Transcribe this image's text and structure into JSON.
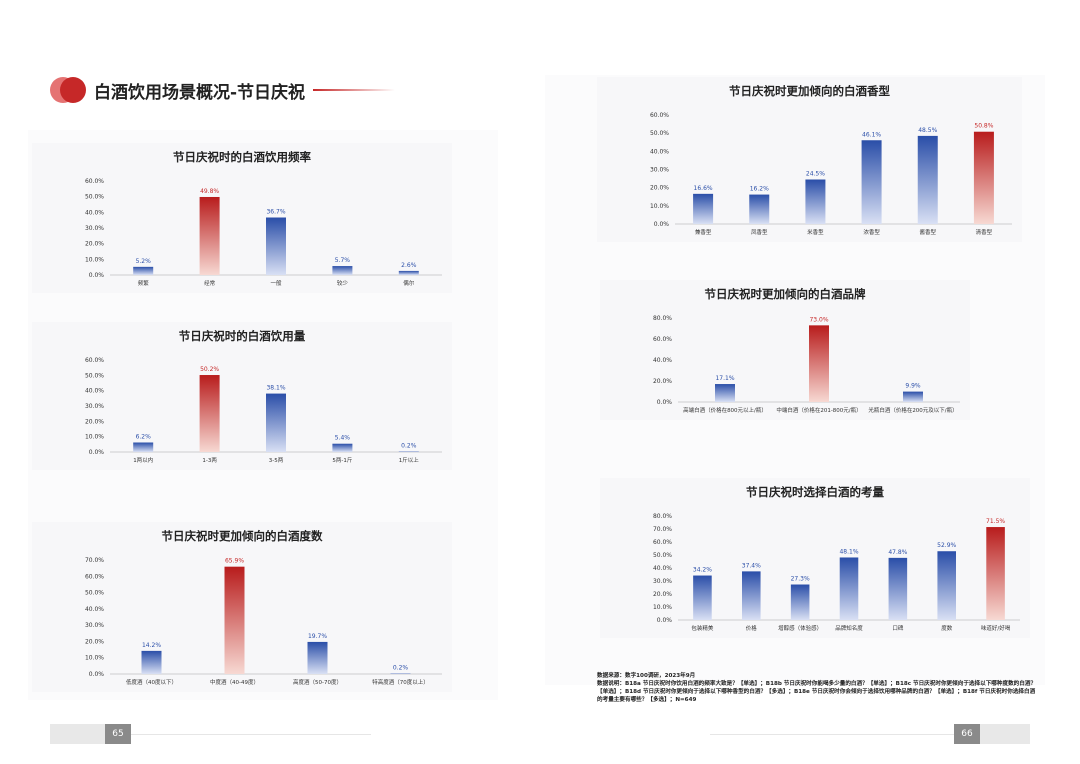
{
  "header": {
    "title": "白酒饮用场景概况-节日庆祝"
  },
  "colors": {
    "accent": "#c62828",
    "red_bar_top": "#b81c1c",
    "red_bar_bottom": "#f7d9d3",
    "blue_bar_top": "#2a4ea8",
    "blue_bar_bottom": "#d9e0f4",
    "red_label": "#c62828",
    "blue_label": "#2a4ea8"
  },
  "chart_data": [
    {
      "type": "bar",
      "title": "节日庆祝时的白酒饮用频率",
      "categories": [
        "频繁",
        "经常",
        "一般",
        "较少",
        "偶尔"
      ],
      "values": [
        5.2,
        49.8,
        36.7,
        5.7,
        2.6
      ],
      "labels": [
        "5.2%",
        "49.8%",
        "36.7%",
        "5.7%",
        "2.6%"
      ],
      "yticks": [
        "0.0%",
        "10.0%",
        "20.0%",
        "30.0%",
        "40.0%",
        "50.0%",
        "60.0%"
      ],
      "ylim": [
        0,
        60
      ],
      "highlight": 1
    },
    {
      "type": "bar",
      "title": "节日庆祝时的白酒饮用量",
      "categories": [
        "1两以内",
        "1-3两",
        "3-5两",
        "5两-1斤",
        "1斤以上"
      ],
      "values": [
        6.2,
        50.2,
        38.1,
        5.4,
        0.2
      ],
      "labels": [
        "6.2%",
        "50.2%",
        "38.1%",
        "5.4%",
        "0.2%"
      ],
      "yticks": [
        "0.0%",
        "10.0%",
        "20.0%",
        "30.0%",
        "40.0%",
        "50.0%",
        "60.0%"
      ],
      "ylim": [
        0,
        60
      ],
      "highlight": 1
    },
    {
      "type": "bar",
      "title": "节日庆祝时更加倾向的白酒度数",
      "categories": [
        "低度酒（40度以下）",
        "中度酒（40-49度）",
        "高度酒（50-70度）",
        "特高度酒（70度以上）"
      ],
      "values": [
        14.2,
        65.9,
        19.7,
        0.2
      ],
      "labels": [
        "14.2%",
        "65.9%",
        "19.7%",
        "0.2%"
      ],
      "yticks": [
        "0.0%",
        "10.0%",
        "20.0%",
        "30.0%",
        "40.0%",
        "50.0%",
        "60.0%",
        "70.0%"
      ],
      "ylim": [
        0,
        70
      ],
      "highlight": 1
    },
    {
      "type": "bar",
      "title": "节日庆祝时更加倾向的白酒香型",
      "categories": [
        "兼香型",
        "凤香型",
        "米香型",
        "浓香型",
        "酱香型",
        "清香型"
      ],
      "values": [
        16.6,
        16.2,
        24.5,
        46.1,
        48.5,
        50.8
      ],
      "labels": [
        "16.6%",
        "16.2%",
        "24.5%",
        "46.1%",
        "48.5%",
        "50.8%"
      ],
      "yticks": [
        "0.0%",
        "10.0%",
        "20.0%",
        "30.0%",
        "40.0%",
        "50.0%",
        "60.0%"
      ],
      "ylim": [
        0,
        60
      ],
      "highlight": 5
    },
    {
      "type": "bar",
      "title": "节日庆祝时更加倾向的白酒品牌",
      "categories": [
        "高端白酒（价格在800元以上/瓶）",
        "中端白酒（价格在201-800元/瓶）",
        "光瓶白酒（价格在200元及以下/瓶）"
      ],
      "values": [
        17.1,
        73.0,
        9.9
      ],
      "labels": [
        "17.1%",
        "73.0%",
        "9.9%"
      ],
      "yticks": [
        "0.0%",
        "20.0%",
        "40.0%",
        "60.0%",
        "80.0%"
      ],
      "ylim": [
        0,
        80
      ],
      "highlight": 1
    },
    {
      "type": "bar",
      "title": "节日庆祝时选择白酒的考量",
      "categories": [
        "包装精美",
        "价格",
        "增醇感（体验感）",
        "品牌知名度",
        "口碑",
        "度数",
        "味道好/好喝"
      ],
      "values": [
        34.2,
        37.4,
        27.3,
        48.1,
        47.8,
        52.9,
        71.5
      ],
      "labels": [
        "34.2%",
        "37.4%",
        "27.3%",
        "48.1%",
        "47.8%",
        "52.9%",
        "71.5%"
      ],
      "yticks": [
        "0.0%",
        "10.0%",
        "20.0%",
        "30.0%",
        "40.0%",
        "50.0%",
        "60.0%",
        "70.0%",
        "80.0%"
      ],
      "ylim": [
        0,
        80
      ],
      "highlight": 6
    }
  ],
  "source": {
    "line1": "数据来源：数字100调研，2023年9月",
    "line2": "数据说明：B18a 节日庆祝时你饮用白酒的频率大致是？【单选】；B18b 节日庆祝时你能喝多少量的白酒？【单选】；B18c 节日庆祝时你更倾向于选择以下哪种度数的白酒？【单选】；B18d 节日庆祝时你更倾向于选择以下哪种香型的白酒？【多选】；B18e 节日庆祝时你会倾向于选择饮用哪种品牌的白酒？【单选】；B18f 节日庆祝时你选择白酒的考量主要有哪些？【多选】；N=649"
  },
  "footer": {
    "left_page": "65",
    "right_page": "66"
  }
}
